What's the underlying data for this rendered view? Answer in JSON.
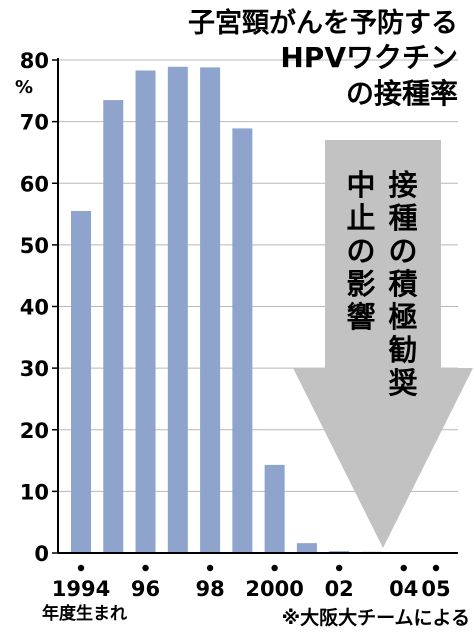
{
  "chart_data": {
    "type": "bar",
    "title": [
      "子宮頸がんを予防する",
      "HPVワクチン",
      "の接種率"
    ],
    "ylabel": "%",
    "xlabel": "年度生まれ",
    "ylim": [
      0,
      80
    ],
    "yticks": [
      0,
      10,
      20,
      30,
      40,
      50,
      60,
      70,
      80
    ],
    "grid": "horizontal",
    "categories": [
      "1994",
      "1995",
      "1996",
      "1997",
      "1998",
      "1999",
      "2000",
      "2001",
      "2002",
      "2003",
      "2004",
      "2005"
    ],
    "xtick_labels": [
      "1994",
      "",
      "96",
      "",
      "98",
      "",
      "2000",
      "",
      "02",
      "",
      "04",
      "05"
    ],
    "values": [
      55.5,
      73.5,
      78.3,
      78.9,
      78.8,
      68.9,
      14.3,
      1.6,
      0.3,
      0.2,
      0.1,
      0
    ],
    "bar_color": "#8fa4cc",
    "annotation": {
      "columns": [
        "接種の積極勧奨",
        "中止の影響"
      ],
      "arrow_color": "#c2c2c2"
    },
    "source_note": "※大阪大チームによる"
  }
}
